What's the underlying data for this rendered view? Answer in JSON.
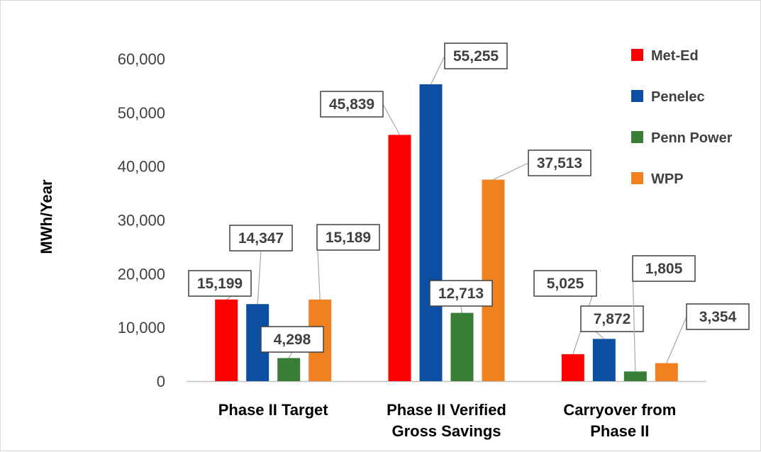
{
  "chart_data": {
    "type": "bar",
    "title": "",
    "xlabel": "",
    "ylabel": "MWh/Year",
    "ylim": [
      0,
      60000
    ],
    "yticks": [
      "0",
      "10,000",
      "20,000",
      "30,000",
      "40,000",
      "50,000",
      "60,000"
    ],
    "grid": false,
    "legend_position": "top-right",
    "categories": [
      [
        "Phase II Target"
      ],
      [
        "Phase II Verified",
        "Gross Savings"
      ],
      [
        "Carryover from",
        "Phase II"
      ]
    ],
    "series": [
      {
        "name": "Met-Ed",
        "color": "#ff0000",
        "values": [
          15199,
          45839,
          5025
        ],
        "labels": [
          "15,199",
          "45,839",
          "5,025"
        ]
      },
      {
        "name": "Penelec",
        "color": "#0b4ea2",
        "values": [
          14347,
          55255,
          7872
        ],
        "labels": [
          "14,347",
          "55,255",
          "7,872"
        ]
      },
      {
        "name": "Penn Power",
        "color": "#3a7d37",
        "values": [
          4298,
          12713,
          1805
        ],
        "labels": [
          "4,298",
          "12,713",
          "1,805"
        ]
      },
      {
        "name": "WPP",
        "color": "#f08020",
        "values": [
          15189,
          37513,
          3354
        ],
        "labels": [
          "15,189",
          "37,513",
          "3,354"
        ]
      }
    ]
  }
}
